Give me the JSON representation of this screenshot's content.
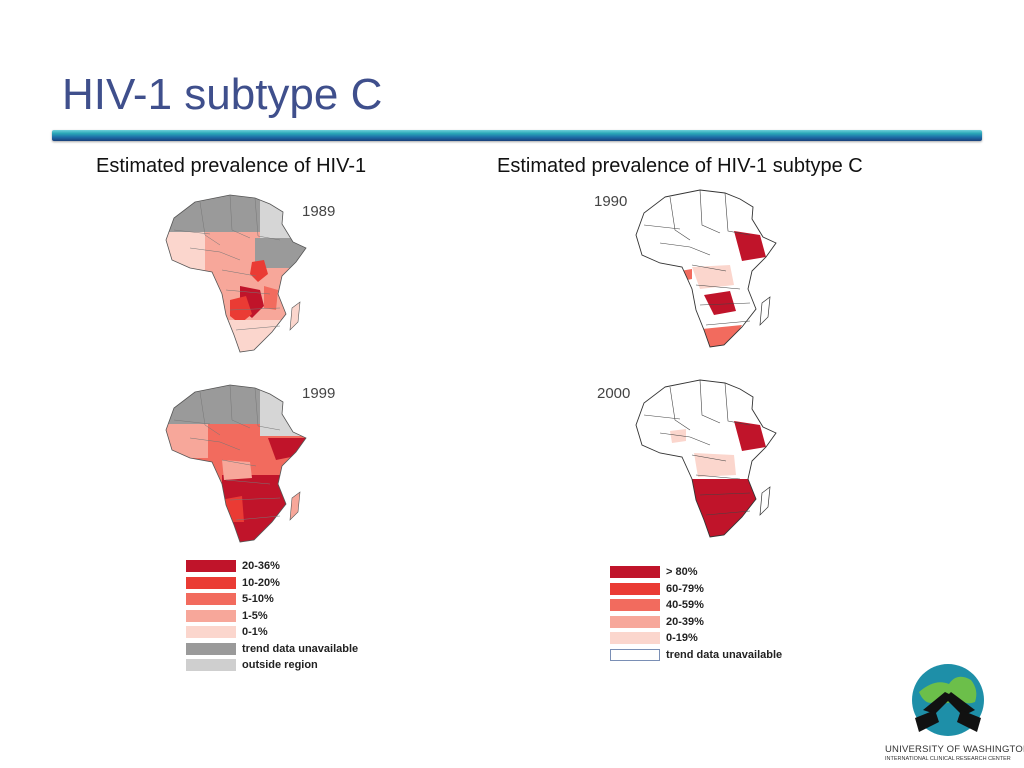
{
  "slide": {
    "title": "HIV-1 subtype C",
    "left_heading": "Estimated prevalence of HIV-1",
    "right_heading": "Estimated prevalence of HIV-1 subtype C"
  },
  "maps": {
    "hiv_1989": {
      "year": "1989"
    },
    "hiv_1999": {
      "year": "1999"
    },
    "subc_1990": {
      "year": "1990"
    },
    "subc_2000": {
      "year": "2000"
    }
  },
  "legend_left": [
    {
      "label": "20-36%",
      "color": "#c0142a"
    },
    {
      "label": "10-20%",
      "color": "#ea3b34"
    },
    {
      "label": "5-10%",
      "color": "#f26b5e"
    },
    {
      "label": "1-5%",
      "color": "#f7a79a"
    },
    {
      "label": "0-1%",
      "color": "#fbd6cd"
    },
    {
      "label": "trend data unavailable",
      "color": "#9a9a9a"
    },
    {
      "label": "outside region",
      "color": "#cfcfcf"
    }
  ],
  "legend_right": [
    {
      "label": "> 80%",
      "color": "#c0142a"
    },
    {
      "label": "60-79%",
      "color": "#ea3b34"
    },
    {
      "label": "40-59%",
      "color": "#f26b5e"
    },
    {
      "label": "20-39%",
      "color": "#f7a79a"
    },
    {
      "label": "0-19%",
      "color": "#fbd6cd"
    },
    {
      "label": "trend data unavailable",
      "color": "#ffffff"
    }
  ],
  "footer": {
    "org": "UNIVERSITY OF WASHINGTON",
    "unit": "INTERNATIONAL CLINICAL RESEARCH CENTER"
  },
  "icons": {
    "logo": "handshake-globe-icon"
  }
}
